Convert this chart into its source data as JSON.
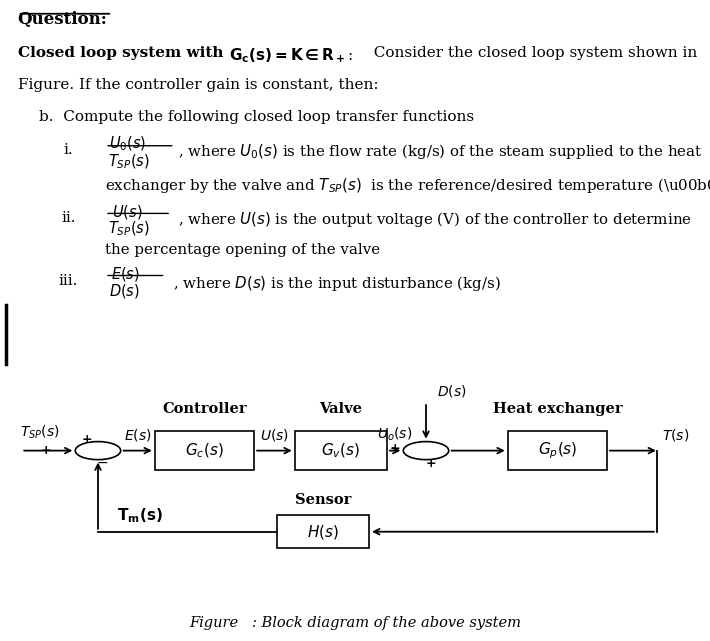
{
  "bg_color": "#ffffff",
  "title_text": "Question:",
  "figure_caption": "Figure   : Block diagram of the above system",
  "diagram": {
    "label_controller": "Controller",
    "label_valve": "Valve",
    "label_heatex": "Heat exchanger",
    "label_sensor": "Sensor",
    "label_gc": "$G_c(s)$",
    "label_gv": "$G_v(s)$",
    "label_gp": "$G_p(s)$",
    "label_hs": "$H(s)$",
    "label_tsp": "$T_{SP}(s)$",
    "label_es": "$E(s)$",
    "label_us": "$U(s)$",
    "label_uos": "$U_o(s)$",
    "label_ts": "$T(s)$",
    "label_tms": "$T_m(s)$",
    "label_ds": "$D(s)$"
  }
}
